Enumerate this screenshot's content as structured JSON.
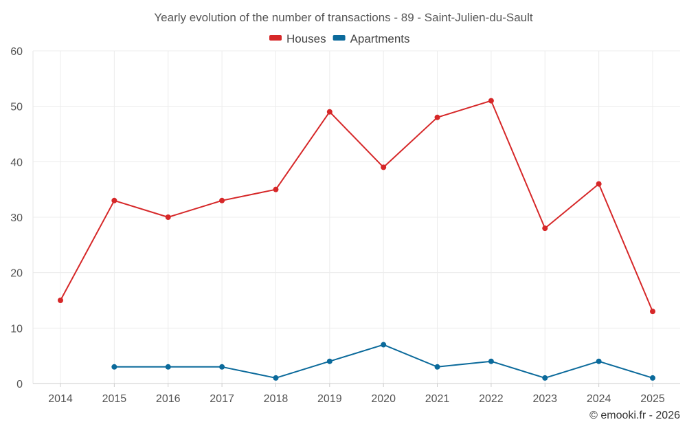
{
  "chart_data": {
    "type": "line",
    "title": "Yearly evolution of the number of transactions - 89 - Saint-Julien-du-Sault",
    "xlabel": "",
    "ylabel": "",
    "categories": [
      "2014",
      "2015",
      "2016",
      "2017",
      "2018",
      "2019",
      "2020",
      "2021",
      "2022",
      "2023",
      "2024",
      "2025"
    ],
    "series": [
      {
        "name": "Houses",
        "color": "#d62728",
        "values": [
          15,
          33,
          30,
          33,
          35,
          49,
          39,
          48,
          51,
          28,
          36,
          13
        ]
      },
      {
        "name": "Apartments",
        "color": "#0b6a9b",
        "values": [
          null,
          3,
          3,
          3,
          1,
          4,
          7,
          3,
          4,
          1,
          4,
          1
        ]
      }
    ],
    "ylim": [
      0,
      60
    ],
    "yticks": [
      0,
      10,
      20,
      30,
      40,
      50,
      60
    ],
    "grid": true,
    "legend_position": "top-center"
  },
  "credit": "© emooki.fr - 2026"
}
